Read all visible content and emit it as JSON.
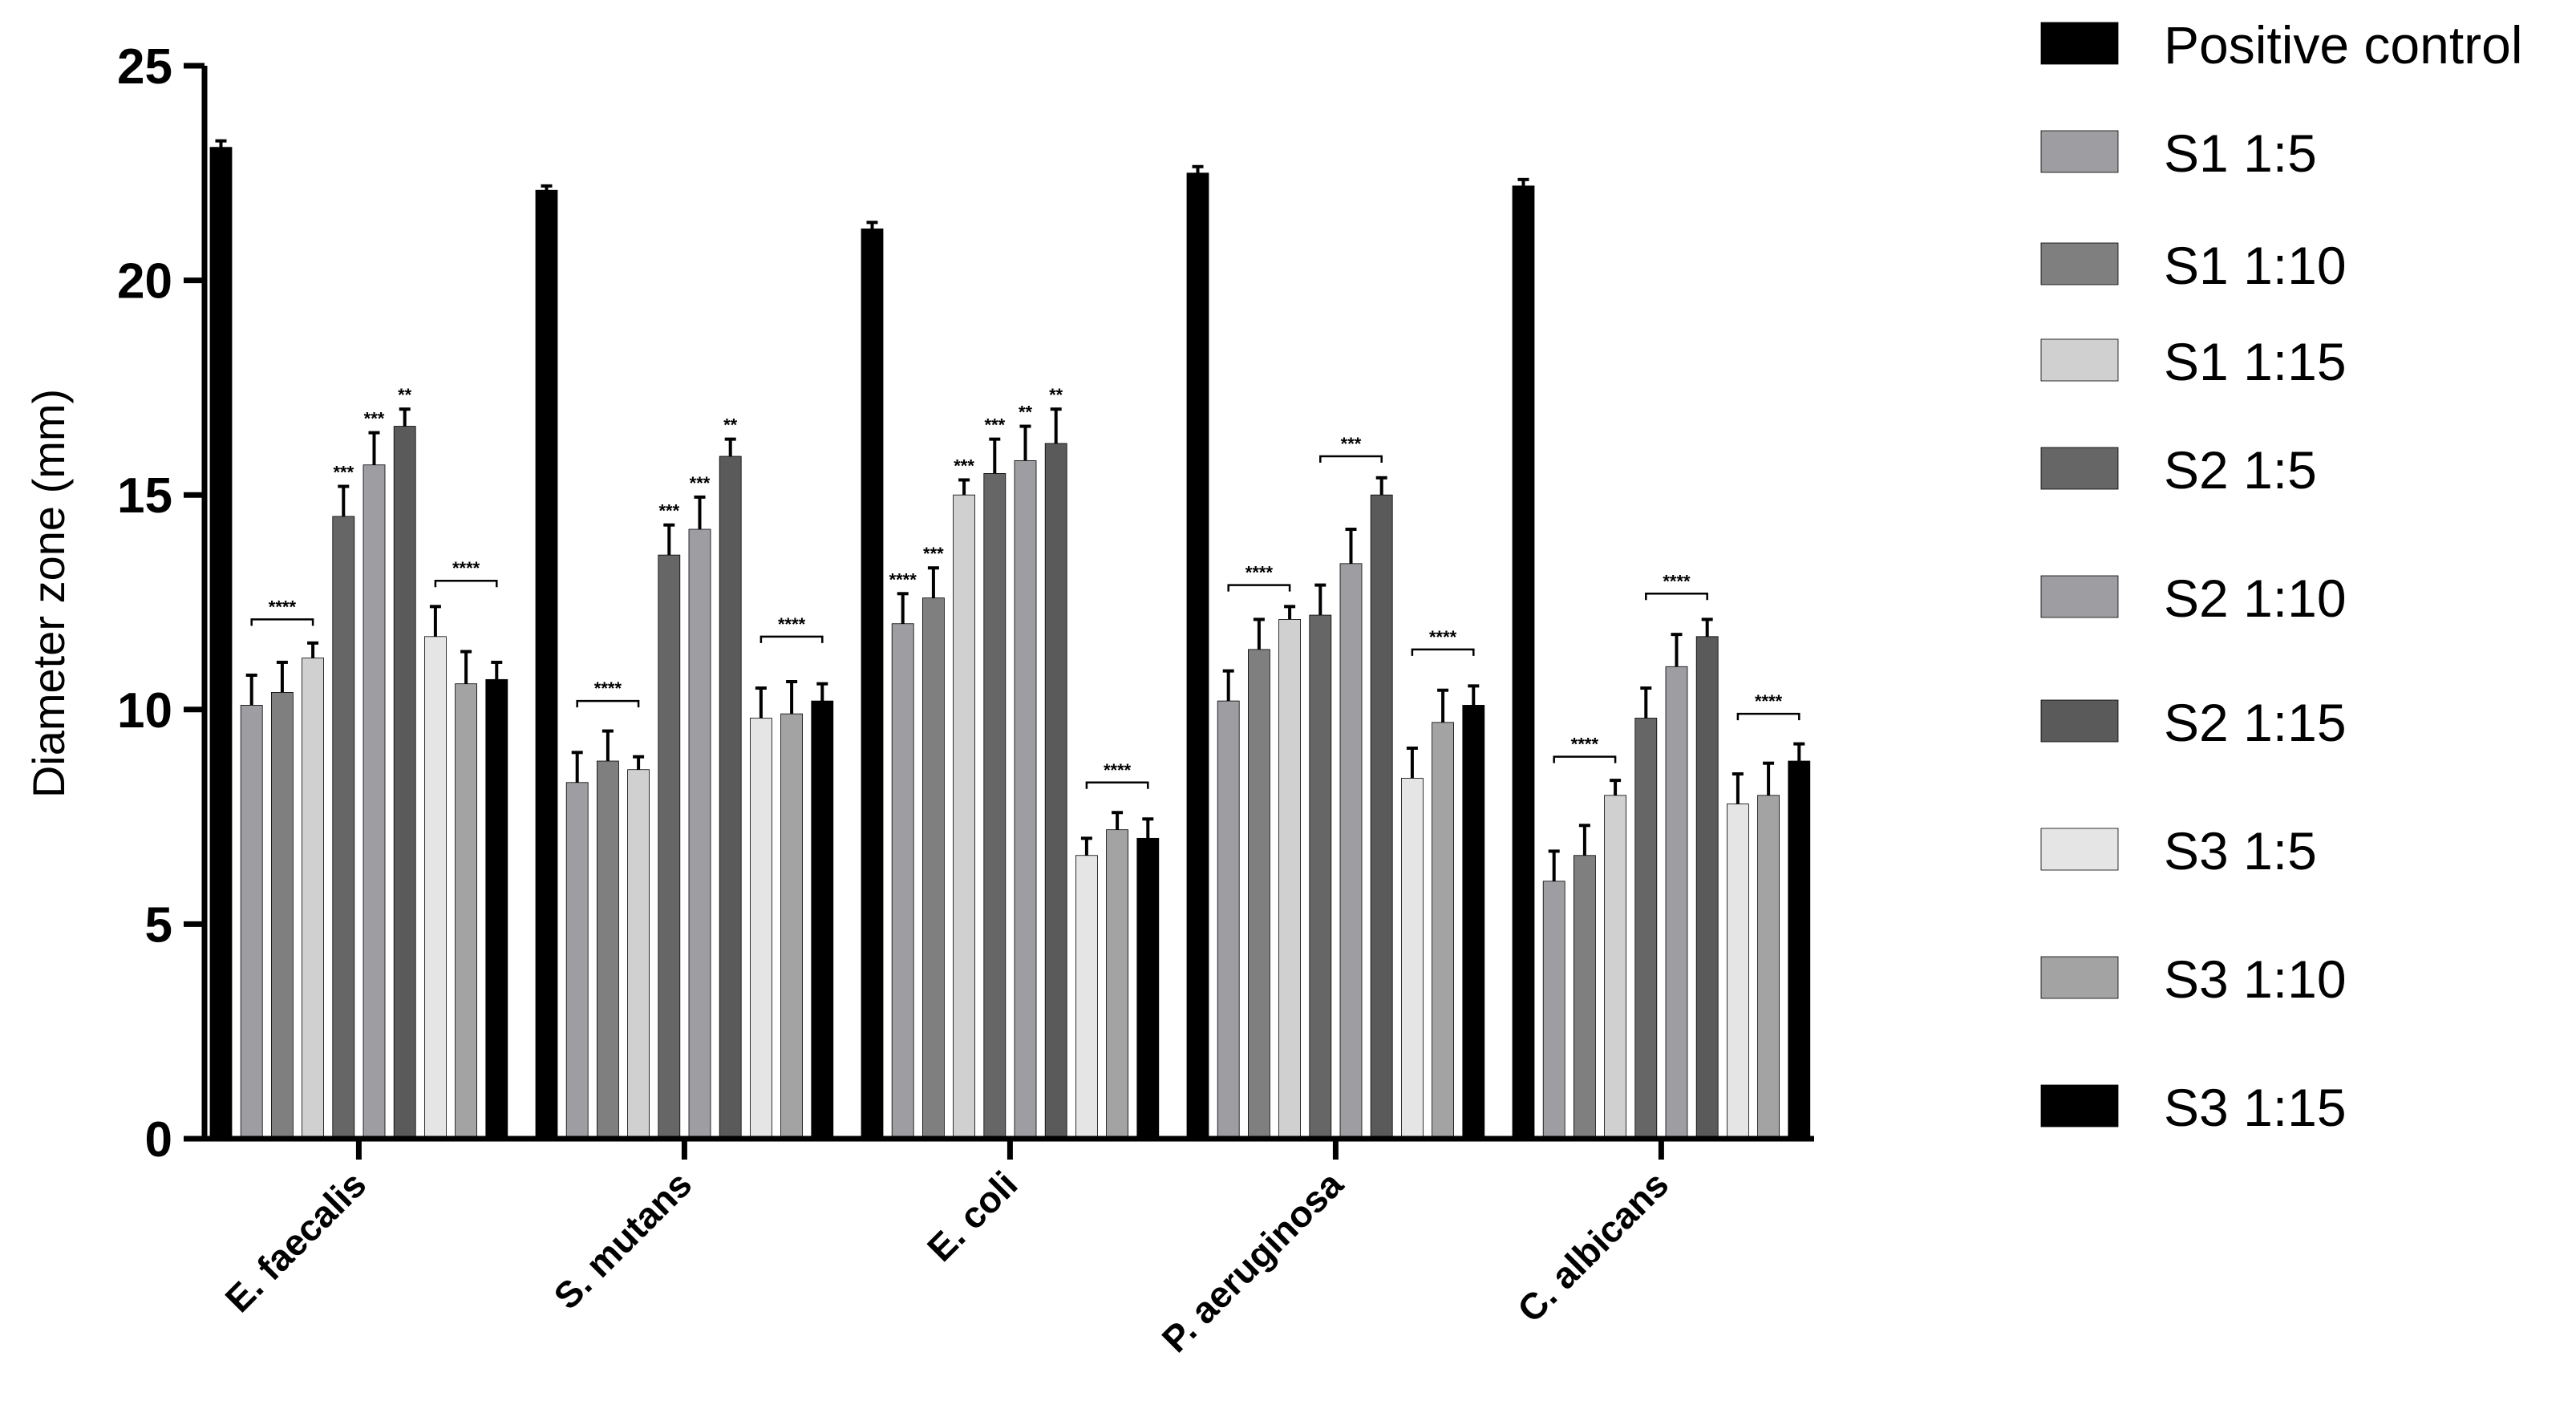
{
  "chart_data": {
    "type": "bar",
    "ylabel": "Diameter zone (mm)",
    "xlabel": "",
    "ylim": [
      0,
      25
    ],
    "yticks": [
      0,
      5,
      10,
      15,
      20,
      25
    ],
    "grid": false,
    "legend_position": "right",
    "categories": [
      "E. faecalis",
      "S. mutans",
      "E. coli",
      "P. aeruginosa",
      "C. albicans"
    ],
    "series": [
      {
        "name": "Positive control",
        "color": "#000000",
        "values": [
          23.1,
          22.1,
          21.2,
          22.5,
          22.2
        ],
        "errors": [
          0.15,
          0.1,
          0.15,
          0.15,
          0.15
        ]
      },
      {
        "name": "S1 1:5",
        "color": "#9e9ea2",
        "values": [
          10.1,
          8.3,
          12.0,
          10.2,
          6.0
        ],
        "errors": [
          0.7,
          0.7,
          0.7,
          0.7,
          0.7
        ]
      },
      {
        "name": "S1 1:10",
        "color": "#7f7f7f",
        "values": [
          10.4,
          8.8,
          12.6,
          11.4,
          6.6
        ],
        "errors": [
          0.7,
          0.7,
          0.7,
          0.7,
          0.7
        ]
      },
      {
        "name": "S1 1:15",
        "color": "#d0d0d0",
        "values": [
          11.2,
          8.6,
          15.0,
          12.1,
          8.0
        ],
        "errors": [
          0.35,
          0.3,
          0.35,
          0.3,
          0.35
        ]
      },
      {
        "name": "S2 1:5",
        "color": "#666666",
        "values": [
          14.5,
          13.6,
          15.5,
          12.2,
          9.8
        ],
        "errors": [
          0.7,
          0.7,
          0.8,
          0.7,
          0.7
        ]
      },
      {
        "name": "S2 1:10",
        "color": "#9e9ea2",
        "values": [
          15.7,
          14.2,
          15.8,
          13.4,
          11.0
        ],
        "errors": [
          0.75,
          0.75,
          0.8,
          0.8,
          0.75
        ]
      },
      {
        "name": "S2 1:15",
        "color": "#5a5a5a",
        "values": [
          16.6,
          15.9,
          16.2,
          15.0,
          11.7
        ],
        "errors": [
          0.4,
          0.4,
          0.8,
          0.4,
          0.4
        ]
      },
      {
        "name": "S3 1:5",
        "color": "#e5e5e5",
        "values": [
          11.7,
          9.8,
          6.6,
          8.4,
          7.8
        ],
        "errors": [
          0.7,
          0.7,
          0.4,
          0.7,
          0.7
        ]
      },
      {
        "name": "S3 1:10",
        "color": "#a3a3a3",
        "values": [
          10.6,
          9.9,
          7.2,
          9.7,
          8.0
        ],
        "errors": [
          0.75,
          0.75,
          0.4,
          0.75,
          0.75
        ]
      },
      {
        "name": "S3 1:15",
        "color": "#000000",
        "values": [
          10.7,
          10.2,
          7.0,
          10.1,
          8.8
        ],
        "errors": [
          0.4,
          0.4,
          0.45,
          0.45,
          0.4
        ]
      }
    ],
    "annotations": [
      {
        "label": "****",
        "category": 0,
        "series": [
          1,
          3
        ],
        "y": 12.1
      },
      {
        "label": "***",
        "category": 0,
        "series": [
          4
        ],
        "y": null
      },
      {
        "label": "***",
        "category": 0,
        "series": [
          5
        ],
        "y": null
      },
      {
        "label": "**",
        "category": 0,
        "series": [
          6
        ],
        "y": null
      },
      {
        "label": "****",
        "category": 0,
        "series": [
          7,
          9
        ],
        "y": 13.0
      },
      {
        "label": "****",
        "category": 1,
        "series": [
          1,
          3
        ],
        "y": 10.2
      },
      {
        "label": "***",
        "category": 1,
        "series": [
          4
        ],
        "y": null
      },
      {
        "label": "***",
        "category": 1,
        "series": [
          5
        ],
        "y": null
      },
      {
        "label": "**",
        "category": 1,
        "series": [
          6
        ],
        "y": null
      },
      {
        "label": "****",
        "category": 1,
        "series": [
          7,
          9
        ],
        "y": 11.7
      },
      {
        "label": "****",
        "category": 2,
        "series": [
          1
        ],
        "y": null
      },
      {
        "label": "***",
        "category": 2,
        "series": [
          2
        ],
        "y": null
      },
      {
        "label": "***",
        "category": 2,
        "series": [
          3
        ],
        "y": null
      },
      {
        "label": "***",
        "category": 2,
        "series": [
          4
        ],
        "y": null
      },
      {
        "label": "**",
        "category": 2,
        "series": [
          5
        ],
        "y": null
      },
      {
        "label": "**",
        "category": 2,
        "series": [
          6
        ],
        "y": null
      },
      {
        "label": "****",
        "category": 2,
        "series": [
          7,
          9
        ],
        "y": 8.3
      },
      {
        "label": "****",
        "category": 3,
        "series": [
          1,
          3
        ],
        "y": 12.9
      },
      {
        "label": "***",
        "category": 3,
        "series": [
          4,
          6
        ],
        "y": 15.9
      },
      {
        "label": "****",
        "category": 3,
        "series": [
          7,
          9
        ],
        "y": 11.4
      },
      {
        "label": "****",
        "category": 4,
        "series": [
          1,
          3
        ],
        "y": 8.9
      },
      {
        "label": "****",
        "category": 4,
        "series": [
          4,
          6
        ],
        "y": 12.7
      },
      {
        "label": "****",
        "category": 4,
        "series": [
          7,
          9
        ],
        "y": 9.9
      }
    ]
  }
}
